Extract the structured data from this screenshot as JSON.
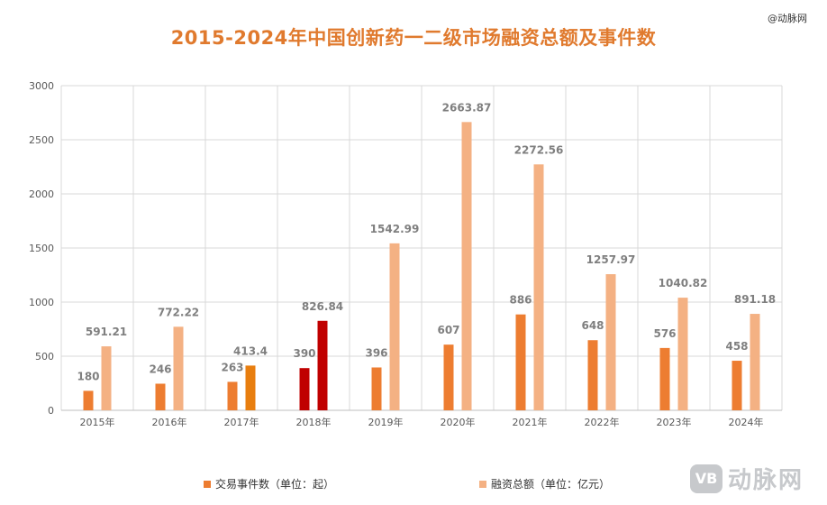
{
  "watermark_top": "@动脉网",
  "brand": {
    "mark": "VB",
    "name": "动脉网"
  },
  "colors": {
    "series_events": "#ED7D31",
    "series_amount": "#F4B183",
    "highlight_2017": "#E87E0F",
    "highlight_2018": "#C00000",
    "label": "#7F7F7F",
    "grid": "#D9D9D9",
    "axis_text": "#595959"
  },
  "chart_data": {
    "type": "bar",
    "title": "2015-2024年中国创新药一二级市场融资总额及事件数",
    "categories": [
      "2015年",
      "2016年",
      "2017年",
      "2018年",
      "2019年",
      "2020年",
      "2021年",
      "2022年",
      "2023年",
      "2024年"
    ],
    "series": [
      {
        "name": "交易事件数（单位：起）",
        "values": [
          180,
          246,
          263,
          390,
          396,
          607,
          886,
          648,
          576,
          458
        ],
        "labels": [
          "180",
          "246",
          "263",
          "390",
          "396",
          "607",
          "886",
          "648",
          "576",
          "458"
        ]
      },
      {
        "name": "融资总额（单位：亿元）",
        "values": [
          591.21,
          772.22,
          413.4,
          826.84,
          1542.99,
          2663.87,
          2272.56,
          1257.97,
          1040.82,
          891.18
        ],
        "labels": [
          "591.21",
          "772.22",
          "413.4",
          "826.84",
          "1542.99",
          "2663.87",
          "2272.56",
          "1257.97",
          "1040.82",
          "891.18"
        ]
      }
    ],
    "ylim": [
      0,
      3000
    ],
    "yticks": [
      "0",
      "500",
      "1000",
      "1500",
      "2000",
      "2500",
      "3000"
    ],
    "ytick_values": [
      0,
      500,
      1000,
      1500,
      2000,
      2500,
      3000
    ],
    "xlabel": "",
    "ylabel": "",
    "grid": true,
    "legend": "bottom"
  }
}
